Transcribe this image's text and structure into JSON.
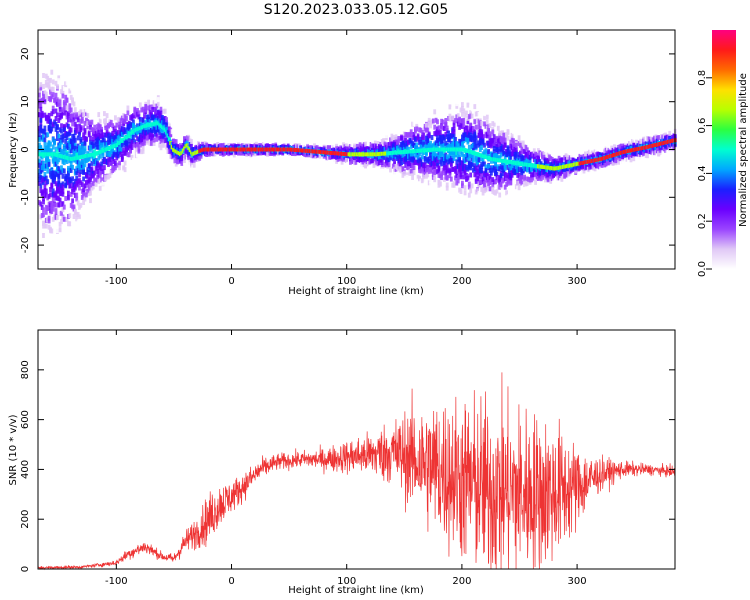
{
  "figure_title": "S120.2023.033.05.12.G05",
  "chart_data": [
    {
      "type": "heatmap",
      "title": "",
      "xlabel": "Height of straight line (km)",
      "ylabel": "Frequency (Hz)",
      "xlim": [
        -168,
        385
      ],
      "ylim": [
        -25,
        25
      ],
      "xticks": [
        -100,
        0,
        100,
        200,
        300
      ],
      "yticks": [
        -20,
        -10,
        0,
        10,
        20
      ],
      "colorbar": {
        "label": "Normalized spectral amplitude",
        "range": [
          0.0,
          1.0
        ],
        "ticks": [
          "0.0",
          "0.2",
          "0.4",
          "0.6",
          "0.8"
        ],
        "tick_values": [
          0.0,
          0.2,
          0.4,
          0.6,
          0.8
        ],
        "colormap": [
          "#ffffff",
          "#e0c8f6",
          "#9a44ff",
          "#6a00ff",
          "#1a20ff",
          "#00a8ff",
          "#00ffd0",
          "#2cff40",
          "#b8ff00",
          "#ffe000",
          "#ff6a00",
          "#ff1a1a",
          "#ff0080"
        ]
      },
      "ridge": {
        "description": "frequency of peak spectral amplitude vs height",
        "x": [
          -155,
          -140,
          -120,
          -100,
          -85,
          -75,
          -65,
          -58,
          -52,
          -45,
          -40,
          -35,
          -30,
          -25,
          -20,
          0,
          25,
          50,
          75,
          100,
          125,
          150,
          175,
          200,
          225,
          250,
          265,
          280,
          300,
          320,
          340,
          360,
          385
        ],
        "y": [
          -1,
          -2,
          -1,
          1,
          4,
          5,
          5.5,
          4,
          0,
          -1,
          1,
          -1,
          -0.5,
          0,
          0,
          0,
          0,
          0,
          -0.5,
          -1,
          -1,
          -0.5,
          0,
          0,
          -2,
          -3,
          -3.5,
          -4,
          -3,
          -2,
          -0.5,
          0.5,
          2
        ],
        "scatter_halfwidth_hz": [
          22,
          18,
          10,
          8,
          7,
          6,
          6,
          5,
          3,
          3,
          3,
          3,
          2,
          1.5,
          1,
          1,
          1,
          1,
          1,
          2,
          3,
          6,
          9,
          12,
          10,
          6,
          4,
          3,
          2,
          2,
          2,
          2,
          2
        ]
      }
    },
    {
      "type": "line",
      "title": "",
      "xlabel": "Height of straight line (km)",
      "ylabel": "SNR (10 * v/v)",
      "xlim": [
        -168,
        385
      ],
      "ylim": [
        0,
        960
      ],
      "xticks": [
        -100,
        0,
        100,
        200,
        300
      ],
      "yticks": [
        0,
        200,
        400,
        600,
        800
      ],
      "color": "#ee3333",
      "envelope": {
        "x": [
          -168,
          -130,
          -100,
          -90,
          -75,
          -60,
          -50,
          -40,
          -30,
          -20,
          -10,
          0,
          10,
          25,
          40,
          60,
          80,
          100,
          120,
          140,
          160,
          180,
          200,
          220,
          240,
          260,
          280,
          300,
          320,
          340,
          360,
          385
        ],
        "mean": [
          5,
          8,
          25,
          60,
          90,
          50,
          40,
          110,
          150,
          200,
          260,
          290,
          330,
          400,
          430,
          440,
          440,
          450,
          460,
          470,
          440,
          400,
          360,
          320,
          310,
          300,
          310,
          330,
          380,
          400,
          400,
          390
        ],
        "amplitude": [
          5,
          5,
          10,
          20,
          25,
          15,
          20,
          40,
          60,
          90,
          80,
          60,
          50,
          40,
          30,
          30,
          40,
          60,
          80,
          120,
          200,
          260,
          300,
          330,
          330,
          300,
          260,
          150,
          60,
          30,
          20,
          20
        ]
      }
    }
  ]
}
